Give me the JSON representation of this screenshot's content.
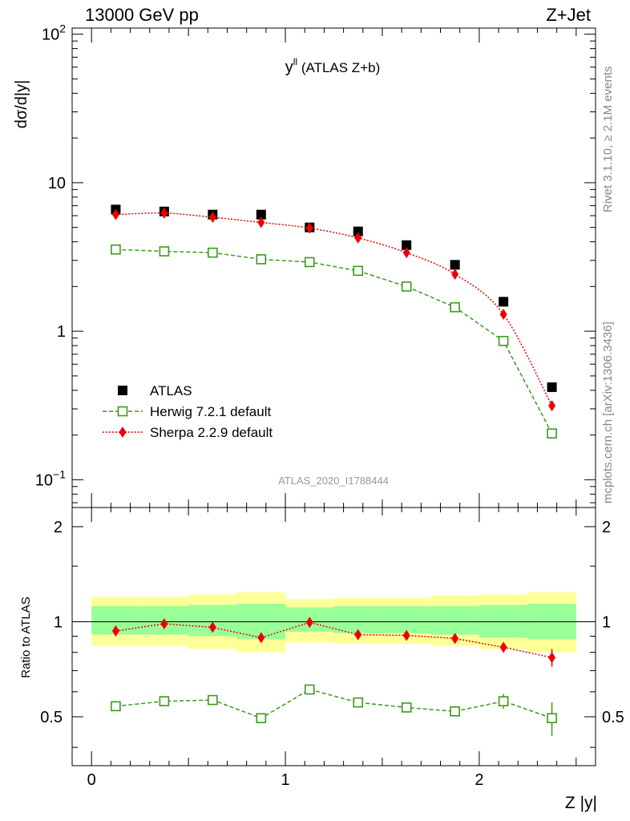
{
  "header": {
    "left": "13000 GeV pp",
    "right": "Z+Jet"
  },
  "side_labels": {
    "rivet": "Rivet 3.1.10, ≥ 2.1M events",
    "mcplots": "mcplots.cern.ch [arXiv:1306.3436]"
  },
  "plot_label": {
    "main": "y",
    "sup": "ll",
    "suffix": "(ATLAS Z+b)"
  },
  "watermark": "ATLAS_2020_I1788444",
  "y_label_top": "dσ/d|y|",
  "y_label_ratio": "Ratio to ATLAS",
  "x_label": "Z |y|",
  "top_ticks": [
    {
      "value": 0.1,
      "label": "10",
      "sup": "−1"
    },
    {
      "value": 1,
      "label": "1",
      "sup": ""
    },
    {
      "value": 10,
      "label": "10",
      "sup": ""
    },
    {
      "value": 100,
      "label": "10",
      "sup": "2"
    }
  ],
  "ratio_ticks": [
    {
      "value": 0.5,
      "label": "0.5"
    },
    {
      "value": 1,
      "label": "1"
    },
    {
      "value": 2,
      "label": "2"
    }
  ],
  "x_ticks": [
    {
      "value": 0,
      "label": "0"
    },
    {
      "value": 1,
      "label": "1"
    },
    {
      "value": 2,
      "label": "2"
    }
  ],
  "legend": [
    {
      "name": "ATLAS",
      "series": "atlas"
    },
    {
      "name": "Herwig 7.2.1 default",
      "series": "herwig"
    },
    {
      "name": "Sherpa 2.2.9 default",
      "series": "sherpa"
    }
  ],
  "colors": {
    "atlas": "#000000",
    "herwig": "#3a9a1a",
    "sherpa": "#ee0000",
    "band_inner": "#99ff99",
    "band_outer": "#ffff99"
  },
  "chart_data": {
    "type": "scatter",
    "x_range": [
      -0.1,
      2.6
    ],
    "top_ylim": [
      0.065,
      110
    ],
    "top_yscale": "log",
    "ratio_ylim": [
      0.35,
      2.3
    ],
    "ratio_yscale": "log",
    "bin_edges": [
      0,
      0.25,
      0.5,
      0.75,
      1.0,
      1.25,
      1.5,
      1.75,
      2.0,
      2.25,
      2.5
    ],
    "x": [
      0.125,
      0.375,
      0.625,
      0.875,
      1.125,
      1.375,
      1.625,
      1.875,
      2.125,
      2.375
    ],
    "series": [
      {
        "name": "ATLAS",
        "key": "atlas",
        "marker": "square-filled",
        "values": [
          6.6,
          6.4,
          6.1,
          6.1,
          5.0,
          4.7,
          3.8,
          2.8,
          1.58,
          0.42
        ],
        "err": [
          0,
          0,
          0,
          0,
          0,
          0,
          0,
          0,
          0,
          0
        ]
      },
      {
        "name": "Herwig 7.2.1 default",
        "key": "herwig",
        "marker": "square-open",
        "line": "dashed",
        "values": [
          3.55,
          3.45,
          3.38,
          3.05,
          2.92,
          2.55,
          2.0,
          1.45,
          0.86,
          0.205
        ],
        "err": [
          0,
          0,
          0,
          0,
          0,
          0,
          0,
          0,
          0,
          0.015
        ]
      },
      {
        "name": "Sherpa 2.2.9 default",
        "key": "sherpa",
        "marker": "diamond-filled",
        "line": "dotted",
        "values": [
          6.1,
          6.25,
          5.85,
          5.4,
          4.95,
          4.25,
          3.38,
          2.42,
          1.3,
          0.315
        ],
        "err": [
          0,
          0,
          0,
          0,
          0,
          0,
          0,
          0,
          0,
          0.02
        ]
      }
    ],
    "ratio": {
      "band_inner": [
        [
          0.91,
          1.12
        ],
        [
          0.91,
          1.12
        ],
        [
          0.9,
          1.13
        ],
        [
          0.88,
          1.14
        ],
        [
          0.93,
          1.11
        ],
        [
          0.92,
          1.12
        ],
        [
          0.92,
          1.12
        ],
        [
          0.91,
          1.12
        ],
        [
          0.89,
          1.13
        ],
        [
          0.88,
          1.14
        ]
      ],
      "band_outer": [
        [
          0.84,
          1.2
        ],
        [
          0.84,
          1.2
        ],
        [
          0.82,
          1.22
        ],
        [
          0.8,
          1.24
        ],
        [
          0.86,
          1.18
        ],
        [
          0.85,
          1.19
        ],
        [
          0.85,
          1.19
        ],
        [
          0.84,
          1.21
        ],
        [
          0.82,
          1.22
        ],
        [
          0.8,
          1.24
        ]
      ],
      "herwig": {
        "values": [
          0.54,
          0.56,
          0.565,
          0.495,
          0.61,
          0.555,
          0.535,
          0.52,
          0.56,
          0.495
        ],
        "err": [
          0,
          0,
          0,
          0,
          0,
          0,
          0,
          0.015,
          0.03,
          0.06
        ]
      },
      "sherpa": {
        "values": [
          0.935,
          0.985,
          0.96,
          0.89,
          0.995,
          0.91,
          0.905,
          0.885,
          0.83,
          0.77
        ],
        "err": [
          0,
          0,
          0,
          0,
          0,
          0,
          0,
          0,
          0.025,
          0.05
        ]
      }
    }
  }
}
